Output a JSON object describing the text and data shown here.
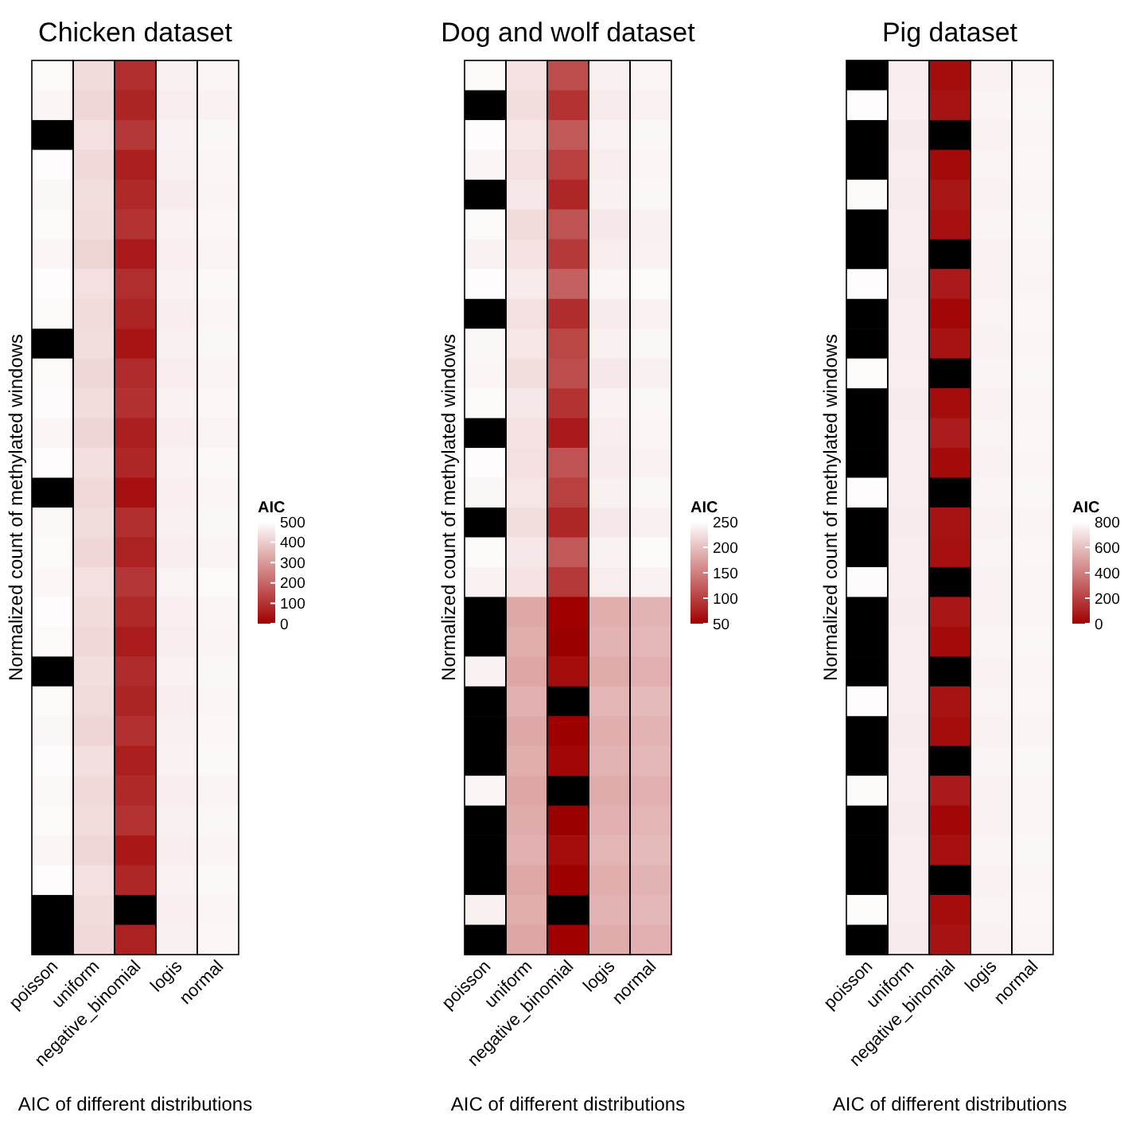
{
  "chart_data": [
    {
      "type": "heatmap",
      "title": "Chicken dataset",
      "xlabel": "AIC of different distributions",
      "ylabel": "Normalized count of methylated windows",
      "clabel": "AIC",
      "categories": [
        "poisson",
        "uniform",
        "negative_binomial",
        "logis",
        "normal"
      ],
      "y_categories": [
        null,
        null,
        null,
        null,
        null,
        null,
        null,
        null,
        null,
        null,
        null,
        null,
        null,
        null,
        null,
        null,
        null,
        null,
        null,
        null,
        null,
        null,
        null,
        null,
        null,
        null,
        null,
        null,
        null,
        null
      ],
      "cells": [
        [
          490,
          430,
          90,
          470,
          480
        ],
        [
          480,
          420,
          70,
          465,
          475
        ],
        [
          null,
          440,
          110,
          475,
          485
        ],
        [
          495,
          425,
          60,
          470,
          480
        ],
        [
          485,
          435,
          80,
          460,
          478
        ],
        [
          490,
          430,
          100,
          472,
          482
        ],
        [
          480,
          415,
          50,
          468,
          476
        ],
        [
          495,
          440,
          90,
          474,
          486
        ],
        [
          490,
          428,
          70,
          466,
          480
        ],
        [
          null,
          436,
          40,
          470,
          484
        ],
        [
          488,
          422,
          85,
          462,
          478
        ],
        [
          492,
          432,
          95,
          472,
          482
        ],
        [
          480,
          418,
          60,
          466,
          476
        ],
        [
          494,
          438,
          75,
          474,
          486
        ],
        [
          null,
          426,
          30,
          468,
          480
        ],
        [
          486,
          434,
          90,
          470,
          484
        ],
        [
          490,
          420,
          65,
          462,
          476
        ],
        [
          482,
          440,
          105,
          476,
          488
        ],
        [
          494,
          430,
          80,
          468,
          480
        ],
        [
          488,
          424,
          55,
          464,
          478
        ],
        [
          null,
          436,
          85,
          472,
          484
        ],
        [
          490,
          428,
          70,
          466,
          480
        ],
        [
          484,
          418,
          95,
          470,
          482
        ],
        [
          492,
          438,
          60,
          474,
          486
        ],
        [
          486,
          426,
          80,
          462,
          476
        ],
        [
          490,
          432,
          100,
          470,
          484
        ],
        [
          480,
          420,
          45,
          466,
          478
        ],
        [
          494,
          440,
          75,
          474,
          486
        ],
        [
          null,
          430,
          null,
          468,
          480
        ],
        [
          null,
          426,
          65,
          470,
          482
        ]
      ],
      "clim": [
        0,
        500
      ],
      "cticks": [
        0,
        100,
        200,
        300,
        400,
        500
      ]
    },
    {
      "type": "heatmap",
      "title": "Dog and wolf dataset",
      "xlabel": "AIC of different distributions",
      "ylabel": "Normalized count of methylated windows",
      "clabel": "AIC",
      "categories": [
        "poisson",
        "uniform",
        "negative_binomial",
        "logis",
        "normal"
      ],
      "y_categories": [
        null,
        null,
        null,
        null,
        null,
        null,
        null,
        null,
        null,
        null,
        null,
        null,
        null,
        null,
        null,
        null,
        null,
        null,
        null,
        null,
        null,
        null,
        null,
        null,
        null,
        null,
        null,
        null,
        null,
        null
      ],
      "cells": [
        [
          245,
          228,
          110,
          238,
          242
        ],
        [
          null,
          224,
          90,
          234,
          240
        ],
        [
          248,
          230,
          120,
          240,
          244
        ],
        [
          242,
          226,
          100,
          236,
          242
        ],
        [
          null,
          232,
          80,
          238,
          244
        ],
        [
          246,
          222,
          115,
          232,
          238
        ],
        [
          240,
          228,
          95,
          236,
          240
        ],
        [
          248,
          234,
          125,
          242,
          246
        ],
        [
          null,
          226,
          85,
          234,
          240
        ],
        [
          244,
          230,
          105,
          238,
          244
        ],
        [
          242,
          224,
          110,
          232,
          238
        ],
        [
          246,
          232,
          90,
          240,
          244
        ],
        [
          null,
          228,
          70,
          236,
          242
        ],
        [
          248,
          226,
          115,
          234,
          240
        ],
        [
          244,
          230,
          100,
          238,
          244
        ],
        [
          null,
          224,
          80,
          232,
          238
        ],
        [
          246,
          232,
          120,
          240,
          246
        ],
        [
          240,
          228,
          95,
          236,
          240
        ],
        [
          null,
          182,
          50,
          186,
          190
        ],
        [
          null,
          186,
          40,
          190,
          194
        ],
        [
          240,
          180,
          60,
          184,
          188
        ],
        [
          null,
          188,
          null,
          192,
          196
        ],
        [
          null,
          182,
          45,
          186,
          190
        ],
        [
          null,
          186,
          55,
          190,
          194
        ],
        [
          242,
          180,
          null,
          184,
          188
        ],
        [
          null,
          184,
          40,
          188,
          192
        ],
        [
          null,
          188,
          60,
          192,
          196
        ],
        [
          null,
          182,
          45,
          186,
          190
        ],
        [
          238,
          186,
          null,
          190,
          194
        ],
        [
          null,
          180,
          50,
          184,
          188
        ]
      ],
      "clim": [
        50,
        250
      ],
      "cticks": [
        50,
        100,
        150,
        200,
        250
      ]
    },
    {
      "type": "heatmap",
      "title": "Pig dataset",
      "xlabel": "AIC of different distributions",
      "ylabel": "Normalized count of methylated windows",
      "clabel": "AIC",
      "categories": [
        "poisson",
        "uniform",
        "negative_binomial",
        "logis",
        "normal"
      ],
      "y_categories": [
        null,
        null,
        null,
        null,
        null,
        null,
        null,
        null,
        null,
        null,
        null,
        null,
        null,
        null,
        null,
        null,
        null,
        null,
        null,
        null,
        null,
        null,
        null,
        null,
        null,
        null,
        null,
        null,
        null,
        null
      ],
      "cells": [
        [
          null,
          740,
          40,
          760,
          770
        ],
        [
          790,
          750,
          60,
          765,
          775
        ],
        [
          null,
          735,
          null,
          755,
          768
        ],
        [
          null,
          745,
          30,
          762,
          772
        ],
        [
          785,
          738,
          70,
          758,
          770
        ],
        [
          null,
          748,
          50,
          764,
          774
        ],
        [
          null,
          742,
          null,
          760,
          770
        ],
        [
          790,
          736,
          80,
          756,
          766
        ],
        [
          null,
          746,
          20,
          762,
          772
        ],
        [
          null,
          740,
          60,
          758,
          770
        ],
        [
          788,
          750,
          null,
          766,
          776
        ],
        [
          null,
          738,
          40,
          756,
          768
        ],
        [
          null,
          744,
          90,
          762,
          772
        ],
        [
          null,
          740,
          30,
          758,
          770
        ],
        [
          792,
          748,
          null,
          764,
          774
        ],
        [
          null,
          736,
          60,
          756,
          766
        ],
        [
          null,
          746,
          50,
          762,
          772
        ],
        [
          786,
          742,
          null,
          760,
          770
        ],
        [
          null,
          738,
          70,
          756,
          768
        ],
        [
          null,
          748,
          30,
          764,
          774
        ],
        [
          null,
          740,
          null,
          758,
          770
        ],
        [
          790,
          744,
          60,
          762,
          772
        ],
        [
          null,
          736,
          40,
          756,
          766
        ],
        [
          null,
          746,
          null,
          764,
          774
        ],
        [
          784,
          742,
          80,
          760,
          770
        ],
        [
          null,
          738,
          20,
          756,
          768
        ],
        [
          null,
          748,
          50,
          764,
          776
        ],
        [
          null,
          740,
          null,
          758,
          770
        ],
        [
          788,
          744,
          40,
          762,
          772
        ],
        [
          null,
          736,
          60,
          756,
          768
        ]
      ],
      "clim": [
        0,
        800
      ],
      "cticks": [
        0,
        200,
        400,
        600,
        800
      ]
    }
  ]
}
